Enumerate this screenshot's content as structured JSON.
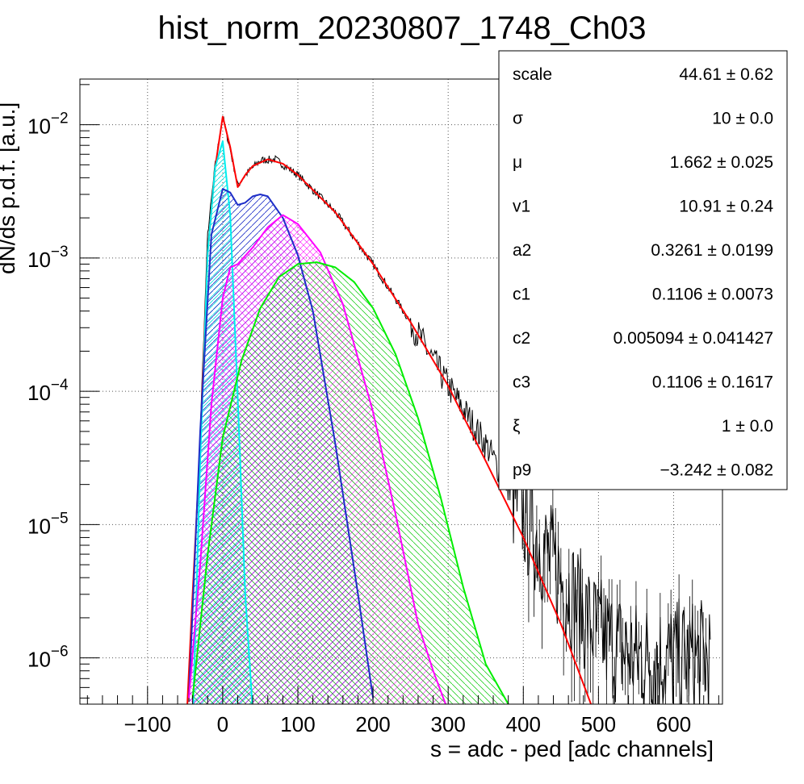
{
  "chart_data": {
    "type": "line",
    "title": "hist_norm_20230807_1748_Ch03",
    "xlabel": "s = adc - ped [adc channels]",
    "ylabel": "dN/ds p.d.f. [a.u.]",
    "xlim": [
      -190,
      665
    ],
    "ylim": [
      4.5e-07,
      0.022
    ],
    "log_y": true,
    "grid": true,
    "x_ticks": [
      -100,
      0,
      100,
      200,
      300,
      400,
      500,
      600
    ],
    "x_tick_labels": [
      "−100",
      "0",
      "100",
      "200",
      "300",
      "400",
      "500",
      "600"
    ],
    "y_ticks": [
      1e-06,
      1e-05,
      0.0001,
      0.001,
      0.01
    ],
    "y_tick_bases": [
      "10",
      "10",
      "10",
      "10",
      "10"
    ],
    "y_tick_exps": [
      "−6",
      "−5",
      "−4",
      "−3",
      "−2"
    ],
    "series": [
      {
        "color": "#000000",
        "style": "histogram",
        "x": [
          -45,
          -30,
          -20,
          -10,
          0,
          10,
          20,
          30,
          50,
          70,
          100,
          150,
          200,
          250,
          300,
          350,
          400,
          450,
          500,
          550,
          600,
          650
        ],
        "y": [
          5e-07,
          5e-05,
          0.0015,
          0.005,
          0.0115,
          0.0065,
          0.0035,
          0.0042,
          0.0054,
          0.0055,
          0.0042,
          0.0022,
          0.0009,
          0.00033,
          0.00011,
          4e-05,
          1.2e-05,
          4e-06,
          1.5e-06,
          1e-06,
          1e-06,
          1e-06
        ]
      },
      {
        "color": "#ff0000",
        "style": "line",
        "x": [
          -50,
          -40,
          -30,
          -20,
          -10,
          0,
          10,
          20,
          30,
          40,
          60,
          80,
          100,
          150,
          200,
          250,
          300,
          350,
          400,
          450,
          490
        ],
        "y": [
          2e-07,
          3e-06,
          4e-05,
          0.0011,
          0.0048,
          0.0115,
          0.0068,
          0.0034,
          0.0042,
          0.0049,
          0.0055,
          0.0051,
          0.0042,
          0.0022,
          0.0009,
          0.00033,
          0.00011,
          3e-05,
          8e-06,
          1.8e-06,
          4.5e-07
        ]
      },
      {
        "color": "#00eeee",
        "style": "line",
        "x": [
          -40,
          -30,
          -20,
          -10,
          0,
          10,
          20,
          30,
          40
        ],
        "y": [
          3e-07,
          3e-05,
          0.0011,
          0.0048,
          0.0075,
          0.0021,
          9e-05,
          3e-06,
          4e-07
        ]
      },
      {
        "color": "#1e2ec8",
        "style": "line",
        "x": [
          -45,
          -30,
          -15,
          0,
          10,
          20,
          30,
          40,
          50,
          60,
          80,
          100,
          120,
          150,
          180,
          200
        ],
        "y": [
          5e-07,
          5e-05,
          0.0015,
          0.0033,
          0.0031,
          0.0025,
          0.0026,
          0.0029,
          0.003,
          0.0029,
          0.002,
          0.00105,
          0.0004,
          4e-05,
          3e-06,
          5e-07
        ]
      },
      {
        "color": "#ff00ff",
        "style": "line",
        "x": [
          -45,
          -30,
          -15,
          0,
          10,
          20,
          40,
          60,
          80,
          100,
          130,
          160,
          200,
          230,
          260,
          280,
          300
        ],
        "y": [
          5e-07,
          5e-06,
          8e-05,
          0.0005,
          0.00085,
          0.0009,
          0.0012,
          0.0017,
          0.0021,
          0.0018,
          0.0011,
          0.00045,
          7e-05,
          1.2e-05,
          1.8e-06,
          8e-07,
          4e-07
        ]
      },
      {
        "color": "#00ee00",
        "style": "line",
        "x": [
          -40,
          -20,
          0,
          25,
          50,
          75,
          100,
          125,
          150,
          175,
          200,
          230,
          260,
          290,
          320,
          350,
          380
        ],
        "y": [
          5e-07,
          6e-06,
          4.5e-05,
          0.00017,
          0.00042,
          0.00072,
          0.0009,
          0.00093,
          0.00085,
          0.00066,
          0.00042,
          0.00019,
          6.3e-05,
          1.6e-05,
          3.4e-06,
          9e-07,
          4.5e-07
        ]
      }
    ]
  },
  "stats": [
    {
      "name": "scale",
      "value": "44.61",
      "pm": "±",
      "err": "0.62"
    },
    {
      "name": "σ",
      "value": "10",
      "pm": "±",
      "err": "0.0"
    },
    {
      "name": "μ",
      "value": "1.662",
      "pm": "±",
      "err": "0.025"
    },
    {
      "name": "v1",
      "value": "10.91",
      "pm": "±",
      "err": "0.24"
    },
    {
      "name": "a2",
      "value": "0.3261",
      "pm": "±",
      "err": "0.0199"
    },
    {
      "name": "c1",
      "value": "0.1106",
      "pm": "±",
      "err": "0.0073"
    },
    {
      "name": "c2",
      "value": "0.005094",
      "pm": "±",
      "err": "0.041427"
    },
    {
      "name": "c3",
      "value": "0.1106",
      "pm": "±",
      "err": "0.1617"
    },
    {
      "name": "ξ",
      "value": "1",
      "pm": "±",
      "err": "0.0"
    },
    {
      "name": "p9",
      "value": "−3.242",
      "pm": "±",
      "err": "0.082"
    }
  ]
}
